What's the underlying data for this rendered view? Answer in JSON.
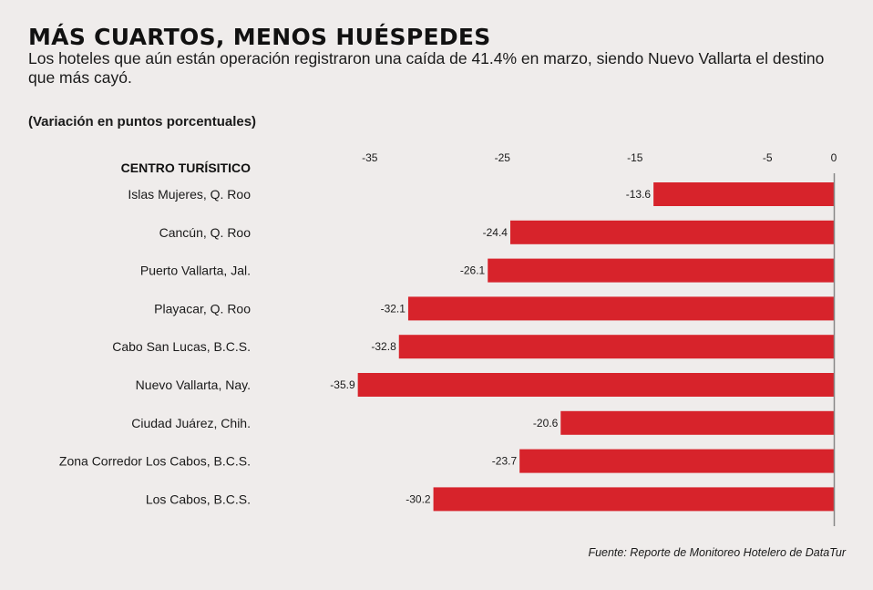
{
  "header": {
    "title": "MÁS CUARTOS, MENOS HUÉSPEDES",
    "subtitle": "Los hoteles que aún están operación registraron una caída de 41.4% en marzo, siendo Nuevo Vallarta el destino que más cayó.",
    "unit_note": "(Variación en puntos porcentuales)"
  },
  "footer": {
    "source": "Fuente: Reporte de Monitoreo Hotelero de DataTur"
  },
  "chart_data": {
    "type": "bar",
    "orientation": "horizontal",
    "category_header": "CENTRO TURÍSITICO",
    "categories": [
      "Islas Mujeres, Q. Roo",
      "Cancún, Q. Roo",
      "Puerto Vallarta, Jal.",
      "Playacar, Q. Roo",
      "Cabo San Lucas, B.C.S.",
      "Nuevo Vallarta, Nay.",
      "Ciudad Juárez, Chih.",
      "Zona Corredor Los Cabos, B.C.S.",
      "Los Cabos, B.C.S."
    ],
    "values": [
      -13.6,
      -24.4,
      -26.1,
      -32.1,
      -32.8,
      -35.9,
      -20.6,
      -23.7,
      -30.2
    ],
    "value_labels": [
      "-13.6",
      "-24.4",
      "-26.1",
      "-32.1",
      "-32.8",
      "-35.9",
      "-20.6",
      "-23.7",
      "-30.2"
    ],
    "ticks": [
      -35,
      -25,
      -15,
      -5,
      0
    ],
    "tick_labels": [
      "-35",
      "-25",
      "-15",
      "-5",
      "0"
    ],
    "xlim": [
      -38.5,
      0
    ],
    "grid": false,
    "bar_color": "#d7232b",
    "axis_color": "#888888"
  }
}
